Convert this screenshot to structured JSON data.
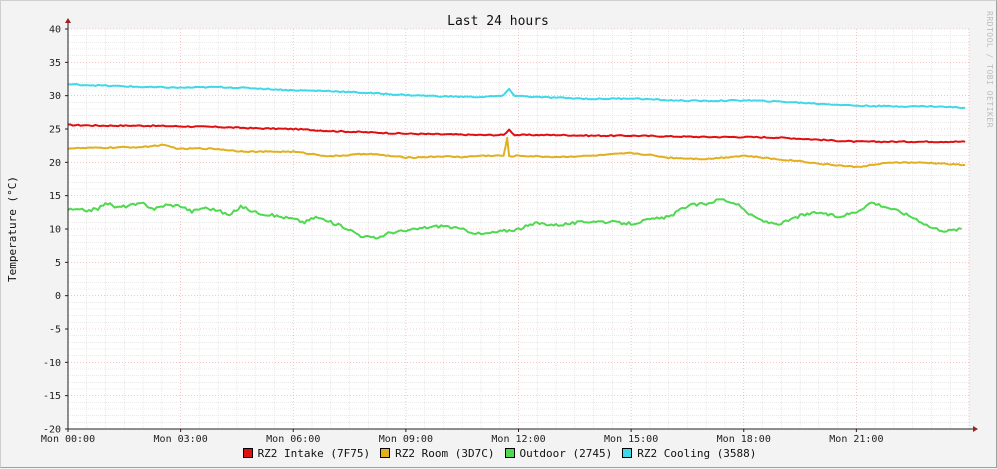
{
  "chart_data": {
    "type": "line",
    "title": "Last 24 hours",
    "ylabel": "Temperature (°C)",
    "watermark": "RRDTOOL / TOBI OETIKER",
    "ylim": [
      -20,
      40
    ],
    "yticks": [
      40,
      35,
      30,
      25,
      20,
      15,
      10,
      5,
      0,
      -5,
      -10,
      -15,
      -20
    ],
    "x_range": [
      0,
      24
    ],
    "xticks": [
      {
        "hour": 0,
        "label": "Mon 00:00"
      },
      {
        "hour": 3,
        "label": "Mon 03:00"
      },
      {
        "hour": 6,
        "label": "Mon 06:00"
      },
      {
        "hour": 9,
        "label": "Mon 09:00"
      },
      {
        "hour": 12,
        "label": "Mon 12:00"
      },
      {
        "hour": 15,
        "label": "Mon 15:00"
      },
      {
        "hour": 18,
        "label": "Mon 18:00"
      },
      {
        "hour": 21,
        "label": "Mon 21:00"
      }
    ],
    "grid": true,
    "legend_position": "bottom",
    "series": [
      {
        "name": "RZ2 Intake (7F75)",
        "color": "#e01010",
        "points": [
          [
            0,
            25.6
          ],
          [
            1,
            25.5
          ],
          [
            2,
            25.5
          ],
          [
            3,
            25.4
          ],
          [
            4,
            25.3
          ],
          [
            5,
            25.1
          ],
          [
            6,
            25.0
          ],
          [
            7,
            24.7
          ],
          [
            8,
            24.5
          ],
          [
            9,
            24.3
          ],
          [
            10,
            24.2
          ],
          [
            11,
            24.1
          ],
          [
            11.6,
            24.1
          ],
          [
            11.75,
            24.9
          ],
          [
            11.9,
            24.1
          ],
          [
            13,
            24.1
          ],
          [
            14,
            24.0
          ],
          [
            15,
            24.0
          ],
          [
            16,
            23.9
          ],
          [
            17,
            23.8
          ],
          [
            18,
            23.8
          ],
          [
            19,
            23.7
          ],
          [
            20,
            23.4
          ],
          [
            20.6,
            23.2
          ],
          [
            21,
            23.1
          ],
          [
            22,
            23.1
          ],
          [
            23,
            23.1
          ],
          [
            23.9,
            23.1
          ]
        ]
      },
      {
        "name": "RZ2 Room (3D7C)",
        "color": "#e0b020",
        "points": [
          [
            0,
            22.1
          ],
          [
            1,
            22.2
          ],
          [
            2,
            22.3
          ],
          [
            2.5,
            22.6
          ],
          [
            3,
            22.0
          ],
          [
            3.5,
            22.1
          ],
          [
            4,
            22.0
          ],
          [
            4.5,
            21.7
          ],
          [
            5,
            21.6
          ],
          [
            6,
            21.6
          ],
          [
            7,
            20.9
          ],
          [
            7.5,
            21.1
          ],
          [
            8,
            21.3
          ],
          [
            9,
            20.7
          ],
          [
            10,
            20.9
          ],
          [
            10.5,
            20.8
          ],
          [
            11,
            21.0
          ],
          [
            11.6,
            21.0
          ],
          [
            11.7,
            23.6
          ],
          [
            11.75,
            20.9
          ],
          [
            12,
            21.0
          ],
          [
            13,
            20.8
          ],
          [
            14,
            21.0
          ],
          [
            15,
            21.4
          ],
          [
            15.5,
            21.1
          ],
          [
            16,
            20.7
          ],
          [
            17,
            20.5
          ],
          [
            18,
            21.0
          ],
          [
            19,
            20.4
          ],
          [
            19.5,
            20.2
          ],
          [
            20,
            19.8
          ],
          [
            21,
            19.3
          ],
          [
            22,
            20.0
          ],
          [
            23,
            19.9
          ],
          [
            23.9,
            19.6
          ]
        ]
      },
      {
        "name": "Outdoor (2745)",
        "color": "#50d850",
        "points": [
          [
            0,
            12.9
          ],
          [
            0.5,
            12.8
          ],
          [
            0.8,
            13.0
          ],
          [
            1,
            14.0
          ],
          [
            1.3,
            13.2
          ],
          [
            1.6,
            13.5
          ],
          [
            2,
            13.8
          ],
          [
            2.3,
            13.0
          ],
          [
            2.6,
            13.6
          ],
          [
            3,
            13.5
          ],
          [
            3.3,
            12.6
          ],
          [
            3.6,
            13.2
          ],
          [
            4,
            12.8
          ],
          [
            4.3,
            12.0
          ],
          [
            4.6,
            13.4
          ],
          [
            5,
            12.5
          ],
          [
            5.5,
            12.0
          ],
          [
            6,
            11.5
          ],
          [
            6.3,
            11.0
          ],
          [
            6.6,
            11.8
          ],
          [
            7,
            11.0
          ],
          [
            7.4,
            10.2
          ],
          [
            7.8,
            9.0
          ],
          [
            8.2,
            8.6
          ],
          [
            8.6,
            9.5
          ],
          [
            9,
            9.7
          ],
          [
            9.5,
            10.2
          ],
          [
            10,
            10.5
          ],
          [
            10.6,
            9.8
          ],
          [
            11,
            9.2
          ],
          [
            11.5,
            9.6
          ],
          [
            12,
            10.0
          ],
          [
            12.5,
            10.9
          ],
          [
            13,
            10.6
          ],
          [
            13.5,
            10.9
          ],
          [
            14,
            11.2
          ],
          [
            14.5,
            11.0
          ],
          [
            15,
            10.8
          ],
          [
            15.5,
            11.4
          ],
          [
            16,
            11.8
          ],
          [
            16.5,
            13.5
          ],
          [
            17,
            13.8
          ],
          [
            17.4,
            14.5
          ],
          [
            17.8,
            13.8
          ],
          [
            18.2,
            12.0
          ],
          [
            18.6,
            11.0
          ],
          [
            19,
            10.8
          ],
          [
            19.5,
            12.0
          ],
          [
            20,
            12.5
          ],
          [
            20.5,
            11.8
          ],
          [
            21,
            12.6
          ],
          [
            21.4,
            14.0
          ],
          [
            21.8,
            13.3
          ],
          [
            22.2,
            12.5
          ],
          [
            22.6,
            11.5
          ],
          [
            23,
            10.2
          ],
          [
            23.4,
            9.7
          ],
          [
            23.8,
            10.0
          ]
        ]
      },
      {
        "name": "RZ2 Cooling (3588)",
        "color": "#40d8e8",
        "points": [
          [
            0,
            31.7
          ],
          [
            1,
            31.5
          ],
          [
            2,
            31.3
          ],
          [
            3,
            31.2
          ],
          [
            4,
            31.3
          ],
          [
            5,
            31.1
          ],
          [
            6,
            30.8
          ],
          [
            7,
            30.7
          ],
          [
            8,
            30.4
          ],
          [
            9,
            30.1
          ],
          [
            10,
            29.9
          ],
          [
            11,
            29.8
          ],
          [
            11.6,
            30.0
          ],
          [
            11.75,
            31.0
          ],
          [
            11.9,
            30.0
          ],
          [
            12.5,
            29.8
          ],
          [
            13,
            29.7
          ],
          [
            14,
            29.5
          ],
          [
            15,
            29.6
          ],
          [
            16,
            29.3
          ],
          [
            17,
            29.2
          ],
          [
            18,
            29.3
          ],
          [
            19,
            29.1
          ],
          [
            20,
            28.8
          ],
          [
            21,
            28.5
          ],
          [
            22,
            28.4
          ],
          [
            23,
            28.4
          ],
          [
            23.9,
            28.2
          ]
        ]
      }
    ]
  }
}
